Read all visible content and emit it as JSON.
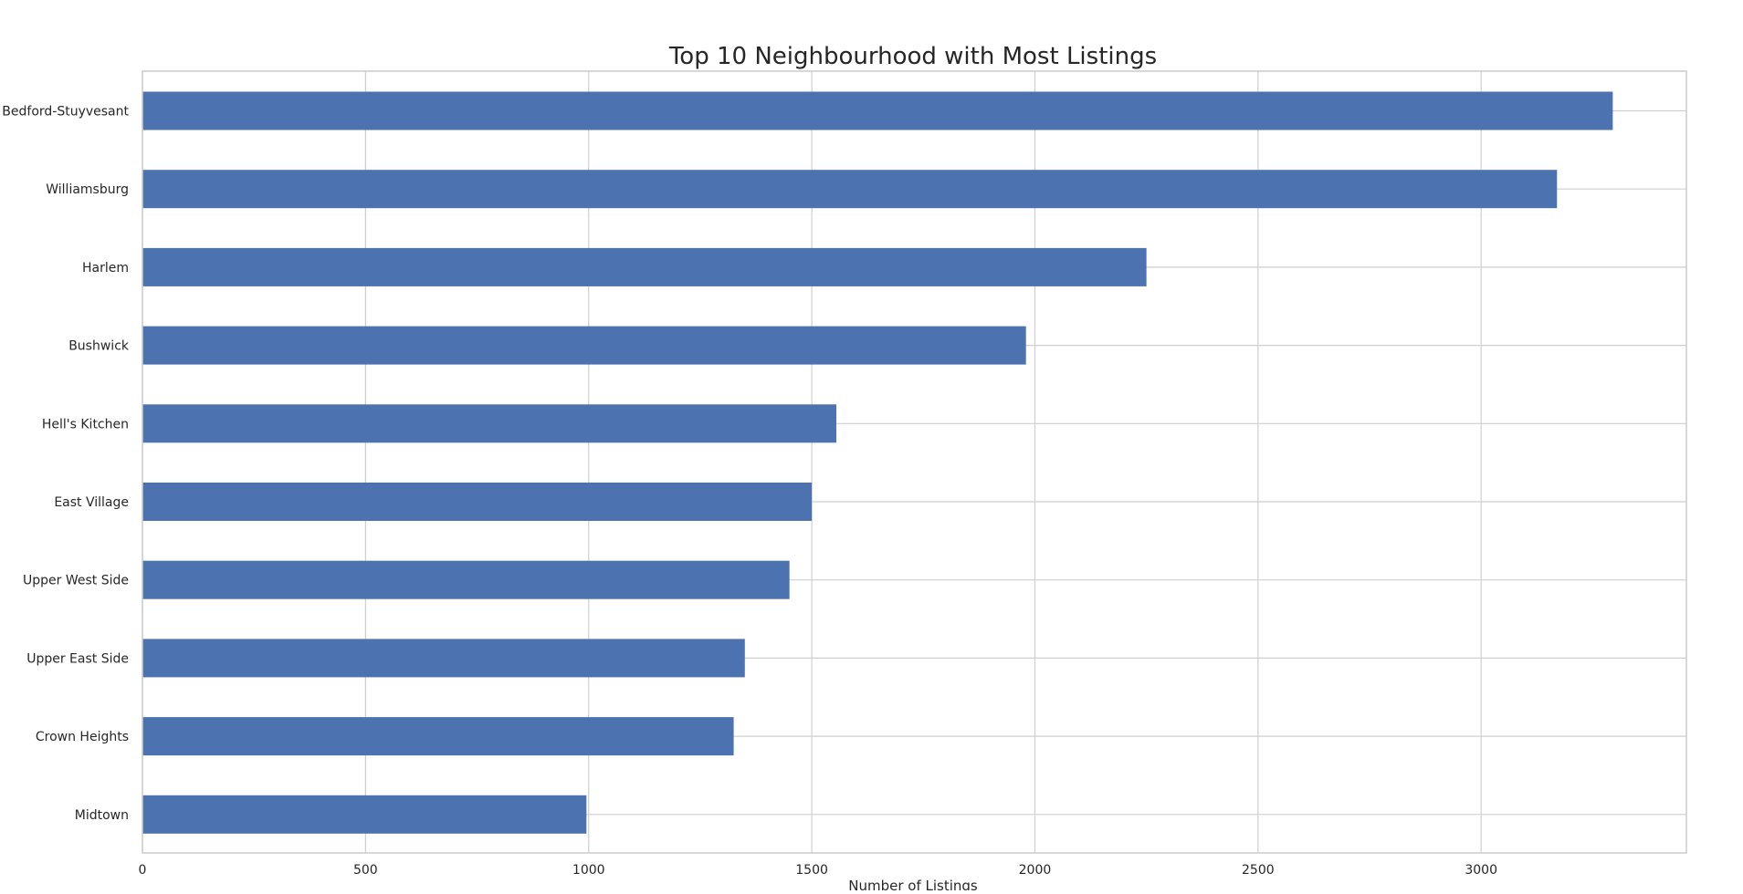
{
  "chart_data": {
    "type": "bar",
    "orientation": "horizontal",
    "title": "Top 10 Neighbourhood with Most Listings",
    "xlabel": "Number of Listings",
    "ylabel": "",
    "categories": [
      "Bedford-Stuyvesant",
      "Williamsburg",
      "Harlem",
      "Bushwick",
      "Hell's Kitchen",
      "East Village",
      "Upper West Side",
      "Upper East Side",
      "Crown Heights",
      "Midtown"
    ],
    "values": [
      3295,
      3170,
      2250,
      1980,
      1555,
      1500,
      1450,
      1350,
      1325,
      995
    ],
    "xlim": [
      0,
      3460
    ],
    "xticks": [
      0,
      500,
      1000,
      1500,
      2000,
      2500,
      3000
    ],
    "grid": true,
    "legend": "none",
    "bar_color": "#4c72b0"
  }
}
